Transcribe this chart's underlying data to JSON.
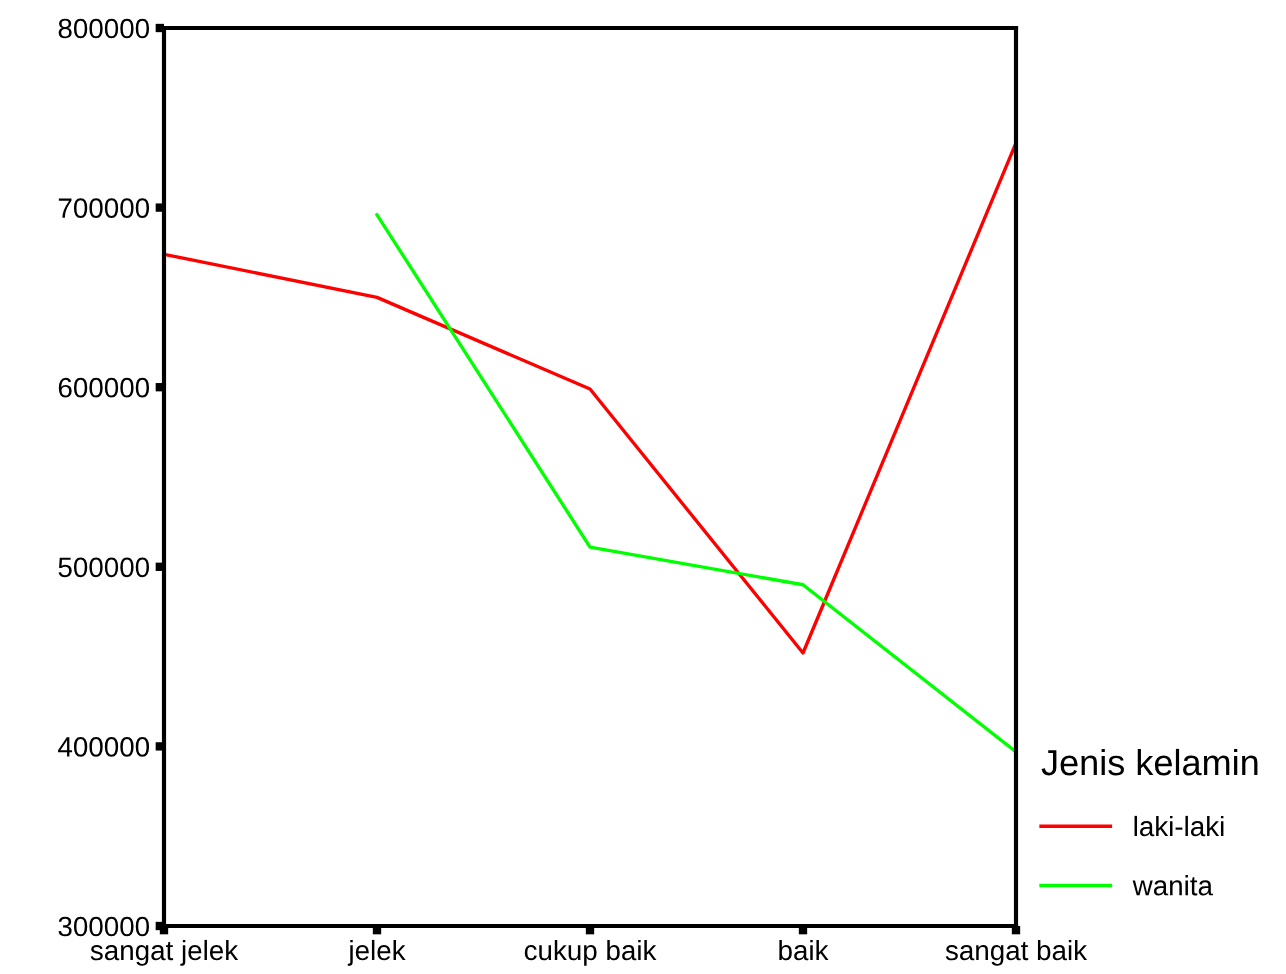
{
  "chart_data": {
    "type": "line",
    "categories": [
      "sangat jelek",
      "jelek",
      "cukup baik",
      "baik",
      "sangat baik"
    ],
    "series": [
      {
        "name": "laki-laki",
        "color": "#ff0000",
        "values": [
          674000,
          650000,
          599000,
          452000,
          736000
        ]
      },
      {
        "name": "wanita",
        "color": "#00ff00",
        "values": [
          null,
          696000,
          511000,
          490000,
          397000
        ]
      }
    ],
    "ylim": [
      300000,
      800000
    ],
    "yticks": [
      300000,
      400000,
      500000,
      600000,
      700000,
      800000
    ],
    "legend": "right",
    "legend_title": "Jenis kelamin",
    "grid": false,
    "marker": "none",
    "line_style": "solid"
  }
}
